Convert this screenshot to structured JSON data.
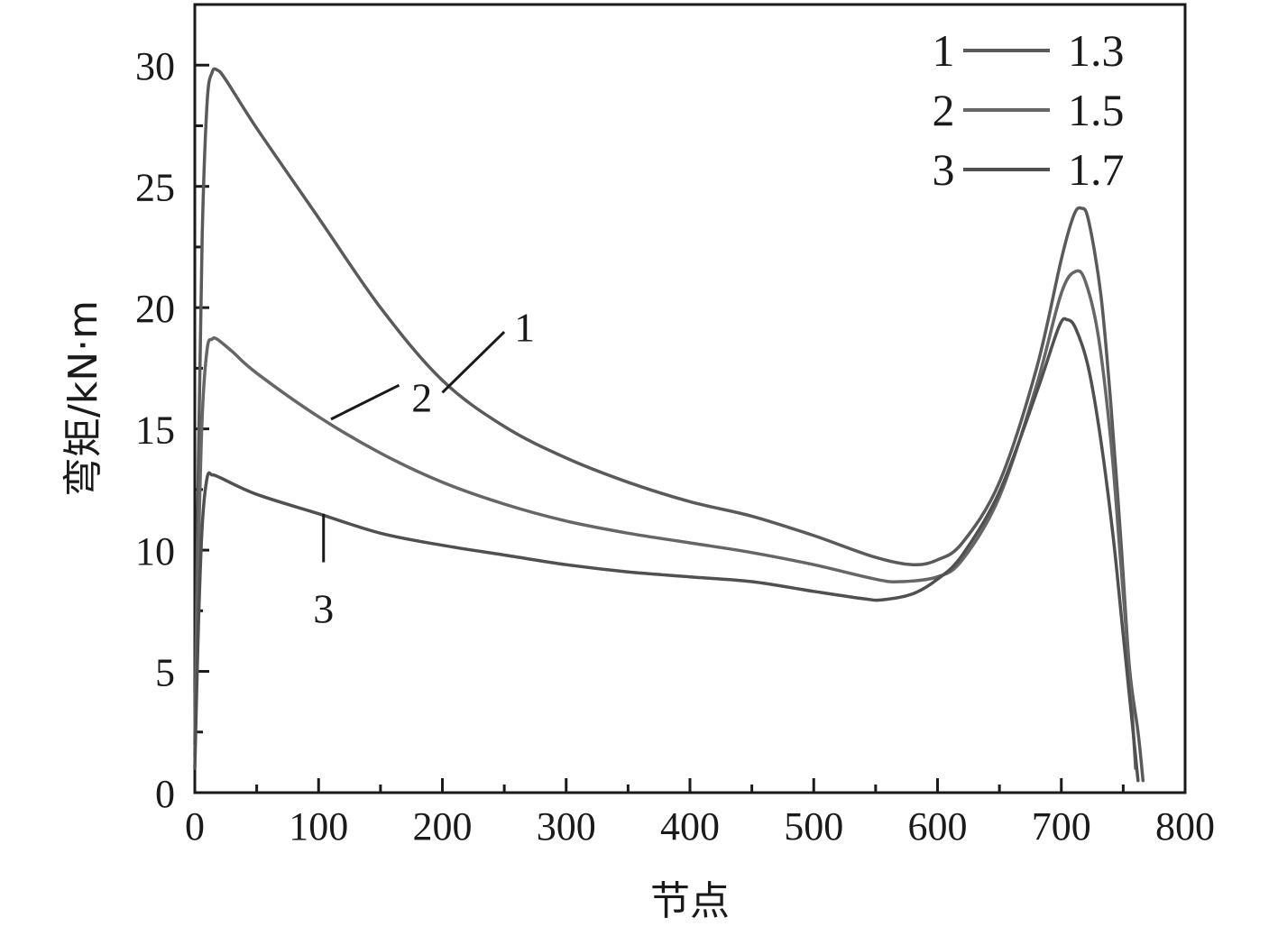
{
  "chart_data": {
    "type": "line",
    "title": "",
    "xlabel": "节点",
    "ylabel": "弯矩/kN·m",
    "xlim": [
      0,
      800
    ],
    "ylim": [
      0,
      32.5
    ],
    "x_ticks": [
      "0",
      "100",
      "200",
      "300",
      "400",
      "500",
      "600",
      "700",
      "800"
    ],
    "y_ticks": [
      "0",
      "5",
      "10",
      "15",
      "20",
      "25",
      "30"
    ],
    "grid": false,
    "legend_position": "top-right",
    "series": [
      {
        "name": "1.3",
        "label": "1",
        "color": "#5a5a5a",
        "points": [
          [
            0,
            2
          ],
          [
            3,
            14
          ],
          [
            6,
            23
          ],
          [
            10,
            28.5
          ],
          [
            14,
            29.7
          ],
          [
            18,
            29.8
          ],
          [
            25,
            29.4
          ],
          [
            50,
            27.4
          ],
          [
            100,
            23.7
          ],
          [
            150,
            20
          ],
          [
            200,
            17
          ],
          [
            250,
            15.1
          ],
          [
            300,
            13.8
          ],
          [
            350,
            12.8
          ],
          [
            400,
            12
          ],
          [
            450,
            11.4
          ],
          [
            500,
            10.6
          ],
          [
            550,
            9.7
          ],
          [
            580,
            9.4
          ],
          [
            600,
            9.6
          ],
          [
            620,
            10.3
          ],
          [
            650,
            12.8
          ],
          [
            680,
            17.5
          ],
          [
            700,
            22
          ],
          [
            710,
            23.8
          ],
          [
            716,
            24.1
          ],
          [
            722,
            23.6
          ],
          [
            732,
            20.5
          ],
          [
            740,
            16
          ],
          [
            748,
            10.5
          ],
          [
            755,
            5.2
          ],
          [
            762,
            2.5
          ],
          [
            766,
            0.5
          ]
        ]
      },
      {
        "name": "1.5",
        "label": "2",
        "color": "#666666",
        "points": [
          [
            0,
            1.5
          ],
          [
            3,
            10
          ],
          [
            6,
            15.5
          ],
          [
            10,
            18.3
          ],
          [
            14,
            18.7
          ],
          [
            18,
            18.7
          ],
          [
            30,
            18.2
          ],
          [
            50,
            17.3
          ],
          [
            100,
            15.5
          ],
          [
            150,
            14
          ],
          [
            200,
            12.8
          ],
          [
            250,
            11.9
          ],
          [
            300,
            11.2
          ],
          [
            350,
            10.7
          ],
          [
            400,
            10.3
          ],
          [
            450,
            9.9
          ],
          [
            500,
            9.4
          ],
          [
            550,
            8.8
          ],
          [
            570,
            8.7
          ],
          [
            600,
            8.9
          ],
          [
            620,
            9.6
          ],
          [
            650,
            12.2
          ],
          [
            680,
            16.8
          ],
          [
            700,
            20.6
          ],
          [
            712,
            21.5
          ],
          [
            720,
            21
          ],
          [
            730,
            18.8
          ],
          [
            740,
            14.5
          ],
          [
            748,
            9.5
          ],
          [
            755,
            5
          ],
          [
            760,
            1
          ]
        ]
      },
      {
        "name": "1.7",
        "label": "3",
        "color": "#505050",
        "points": [
          [
            0,
            1
          ],
          [
            3,
            7
          ],
          [
            6,
            11
          ],
          [
            10,
            13
          ],
          [
            14,
            13.1
          ],
          [
            20,
            13
          ],
          [
            50,
            12.3
          ],
          [
            100,
            11.5
          ],
          [
            150,
            10.7
          ],
          [
            200,
            10.2
          ],
          [
            250,
            9.8
          ],
          [
            300,
            9.4
          ],
          [
            350,
            9.1
          ],
          [
            400,
            8.9
          ],
          [
            450,
            8.7
          ],
          [
            500,
            8.3
          ],
          [
            540,
            8
          ],
          [
            555,
            7.95
          ],
          [
            580,
            8.2
          ],
          [
            600,
            8.8
          ],
          [
            620,
            9.8
          ],
          [
            650,
            12.4
          ],
          [
            680,
            16.5
          ],
          [
            698,
            19.2
          ],
          [
            705,
            19.5
          ],
          [
            712,
            19.1
          ],
          [
            722,
            17.5
          ],
          [
            732,
            14.5
          ],
          [
            742,
            10.5
          ],
          [
            750,
            6.5
          ],
          [
            757,
            3
          ],
          [
            762,
            0.5
          ]
        ]
      }
    ],
    "annotations": [
      {
        "label": "1",
        "line": [
          [
            200,
            16.5
          ],
          [
            250,
            19
          ]
        ],
        "text_at": [
          258,
          19.2
        ]
      },
      {
        "label": "2",
        "line": [
          [
            110,
            15.4
          ],
          [
            165,
            16.8
          ]
        ],
        "text_at": [
          175,
          16.3
        ]
      },
      {
        "label": "3",
        "line": [
          [
            104,
            11.5
          ],
          [
            104,
            9.5
          ]
        ],
        "text_at": [
          104,
          7.6
        ]
      }
    ]
  }
}
